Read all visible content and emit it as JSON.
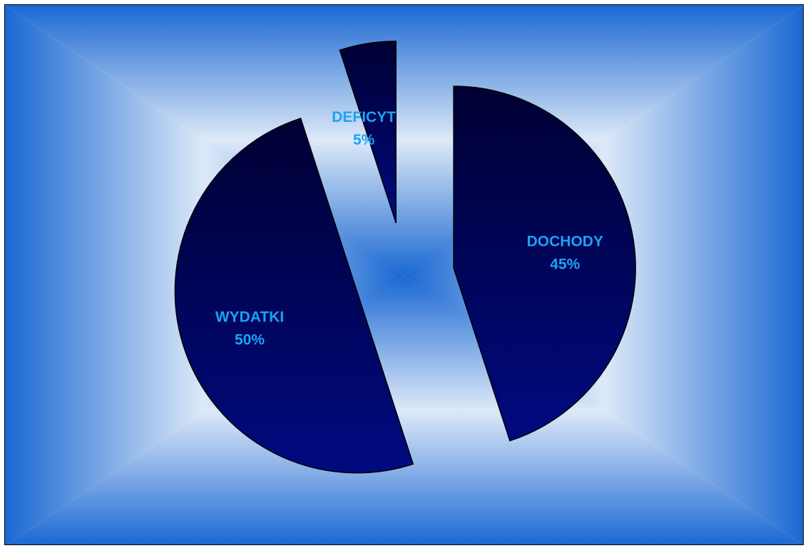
{
  "chart_data": {
    "type": "pie",
    "exploded": true,
    "slices": [
      {
        "label": "DOCHODY",
        "value": 45,
        "value_label": "45%"
      },
      {
        "label": "WYDATKI",
        "value": 50,
        "value_label": "50%"
      },
      {
        "label": "DEFICYT",
        "value": 5,
        "value_label": "5%"
      }
    ],
    "colors": {
      "slice_dark": "#000033",
      "slice_light": "#000a80",
      "label_text": "#1aa3f5",
      "background_edge": "#1a68d2",
      "background_mid": "#8fb0e4",
      "background_center": "#dde9f8"
    }
  }
}
